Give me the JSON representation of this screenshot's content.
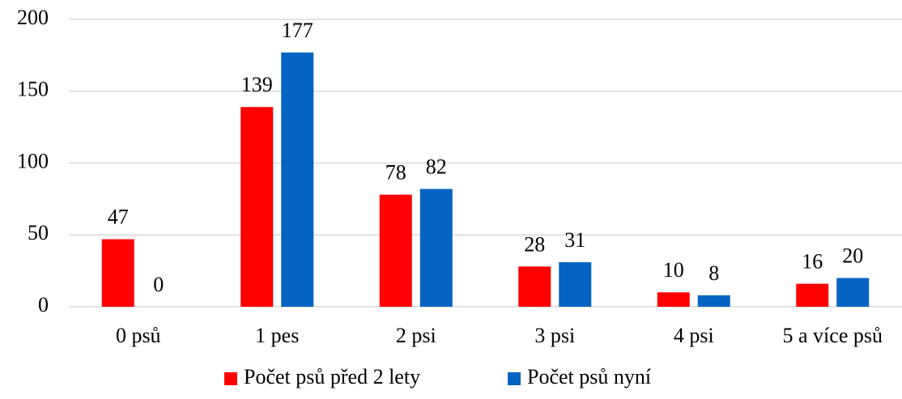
{
  "chart_data": {
    "type": "bar",
    "categories": [
      "0 psů",
      "1 pes",
      "2 psi",
      "3 psi",
      "4 psi",
      "5 a více psů"
    ],
    "series": [
      {
        "name": "Počet psů před 2 lety",
        "color": "#ff0000",
        "values": [
          47,
          139,
          78,
          28,
          10,
          16
        ]
      },
      {
        "name": "Počet psů nyní",
        "color": "#0563c1",
        "values": [
          0,
          177,
          82,
          31,
          8,
          20
        ]
      }
    ],
    "ylim": [
      0,
      200
    ],
    "yticks": [
      0,
      50,
      100,
      150,
      200
    ],
    "grid": true,
    "legend": "bottom"
  }
}
